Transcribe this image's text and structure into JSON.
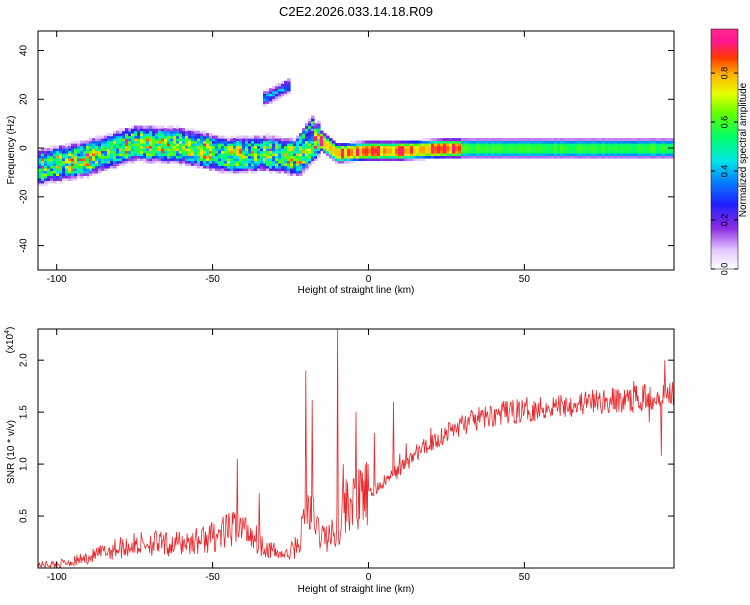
{
  "title": "C2E2.2026.033.14.18.R09",
  "colorbar": {
    "label": "Normalized spectral amplitude",
    "ticks": [
      0.0,
      0.2,
      0.4,
      0.6,
      0.8
    ],
    "tick_labels": [
      "0.0",
      "0.2",
      "0.4",
      "0.6",
      "0.8"
    ],
    "range": [
      0.0,
      0.98
    ]
  },
  "chart_data": [
    {
      "type": "heatmap",
      "xlabel": "Height of straight line (km)",
      "ylabel": "Frequency (Hz)",
      "xlim": [
        -106,
        98
      ],
      "ylim": [
        -50,
        48
      ],
      "x_ticks": [
        -100,
        -50,
        0,
        50
      ],
      "x_tick_labels": [
        "-100",
        "-50",
        "0",
        "50"
      ],
      "y_ticks": [
        -40,
        -20,
        0,
        20,
        40
      ],
      "y_tick_labels": [
        "-40",
        "-20",
        "0",
        "20",
        "40"
      ],
      "band_center": [
        [
          -106,
          -8
        ],
        [
          -90,
          -4
        ],
        [
          -75,
          2
        ],
        [
          -60,
          1
        ],
        [
          -45,
          -3
        ],
        [
          -32,
          -2
        ],
        [
          -22,
          -4
        ],
        [
          -16,
          4
        ],
        [
          -10,
          -2
        ],
        [
          0,
          -1
        ],
        [
          10,
          -1
        ],
        [
          25,
          0
        ],
        [
          60,
          0
        ],
        [
          98,
          0
        ]
      ],
      "features": [
        {
          "name": "upper-streak",
          "x": [
            -34,
            -25
          ],
          "y": [
            20,
            26
          ],
          "amplitude": 0.45
        },
        {
          "name": "rising-arm",
          "x": [
            -26,
            -17
          ],
          "y": [
            -4,
            12
          ],
          "amplitude": 0.6
        }
      ]
    },
    {
      "type": "line",
      "xlabel": "Height of straight line (km)",
      "ylabel": "SNR (10 * v/v)",
      "yscale_label": "(x10",
      "yscale_exp": "4",
      "xlim": [
        -106,
        98
      ],
      "ylim": [
        0,
        2.3
      ],
      "x_ticks": [
        -100,
        -50,
        0,
        50
      ],
      "x_tick_labels": [
        "-100",
        "-50",
        "0",
        "50"
      ],
      "y_ticks": [
        0.5,
        1.0,
        1.5,
        2.0
      ],
      "y_tick_labels": [
        "0.5",
        "1.0",
        "1.5",
        "2.0"
      ],
      "series": [
        {
          "name": "SNR",
          "color": "#e8282b",
          "x": [
            -106,
            -100,
            -95,
            -90,
            -85,
            -80,
            -75,
            -70,
            -65,
            -60,
            -55,
            -50,
            -45,
            -42,
            -38,
            -35,
            -30,
            -26,
            -22,
            -20,
            -18,
            -16,
            -14,
            -12,
            -10,
            -8,
            -6,
            -4,
            -2,
            0,
            2,
            4,
            6,
            8,
            10,
            12,
            15,
            20,
            25,
            30,
            35,
            40,
            45,
            50,
            55,
            60,
            65,
            70,
            75,
            80,
            85,
            88,
            90,
            92,
            94,
            96,
            98
          ],
          "y": [
            0.03,
            0.04,
            0.06,
            0.1,
            0.15,
            0.2,
            0.22,
            0.25,
            0.22,
            0.24,
            0.26,
            0.3,
            0.35,
            0.4,
            0.35,
            0.25,
            0.15,
            0.12,
            0.25,
            0.6,
            0.5,
            0.35,
            0.3,
            0.3,
            0.4,
            0.55,
            0.65,
            0.6,
            0.7,
            0.7,
            0.75,
            0.8,
            0.85,
            0.9,
            0.95,
            1.0,
            1.1,
            1.2,
            1.3,
            1.38,
            1.43,
            1.47,
            1.5,
            1.52,
            1.54,
            1.56,
            1.58,
            1.59,
            1.6,
            1.61,
            1.62,
            1.64,
            1.65,
            1.66,
            1.68,
            1.68,
            1.7
          ],
          "spikes": [
            [
              -42,
              1.05
            ],
            [
              -35,
              0.72
            ],
            [
              -20,
              1.9
            ],
            [
              -18,
              1.62
            ],
            [
              -10,
              2.3
            ],
            [
              -8,
              1.0
            ],
            [
              -4,
              1.5
            ],
            [
              2,
              1.3
            ],
            [
              8,
              1.6
            ],
            [
              10,
              1.1
            ],
            [
              12,
              1.2
            ],
            [
              20,
              1.35
            ],
            [
              85,
              1.8
            ],
            [
              90,
              1.4
            ],
            [
              95,
              2.0
            ],
            [
              94,
              1.08
            ]
          ]
        }
      ]
    }
  ]
}
